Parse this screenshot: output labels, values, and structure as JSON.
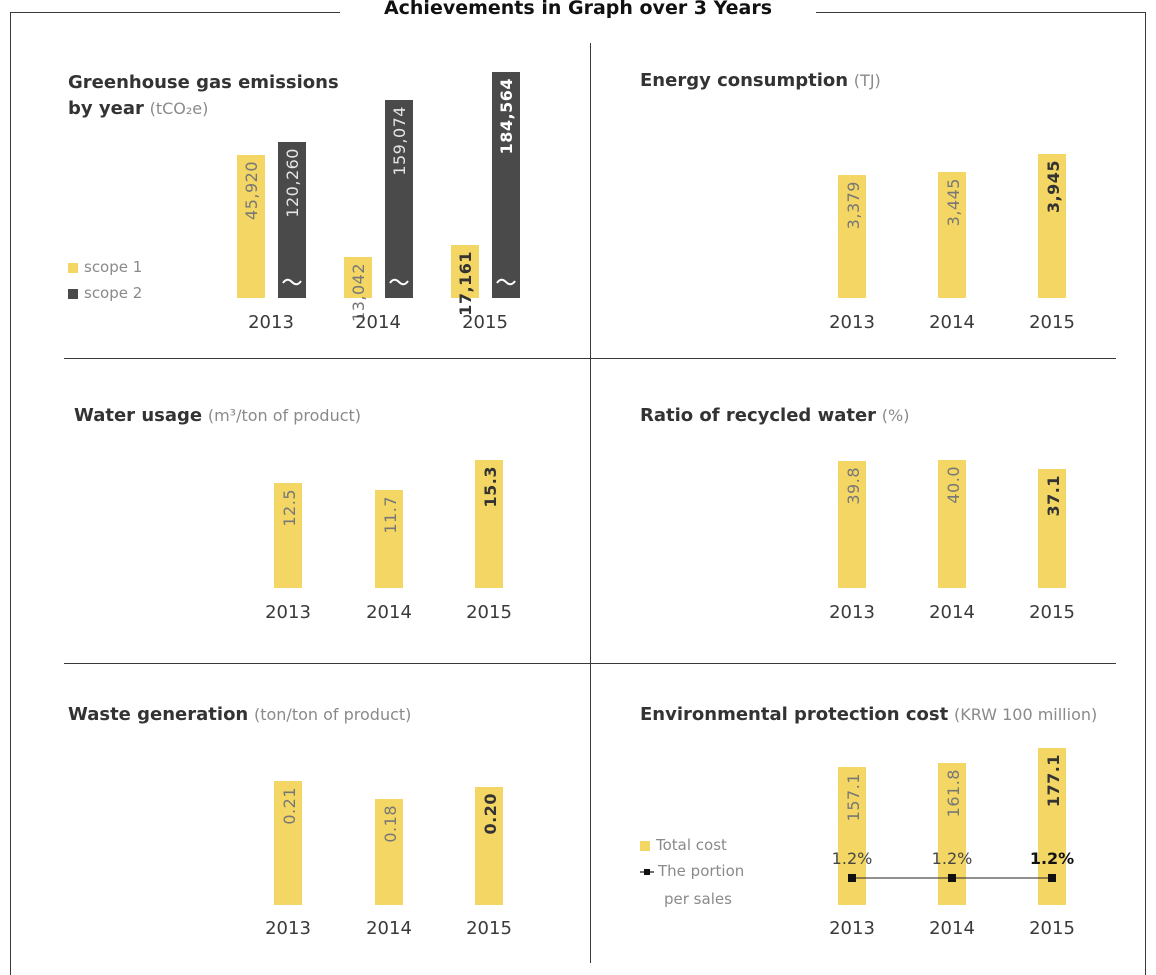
{
  "main_title": "Achievements in Graph over 3 Years",
  "legend": {
    "scope1": "scope 1",
    "scope2": "scope 2",
    "total_cost": "Total cost",
    "portion_line1": "The portion",
    "portion_line2": "per sales"
  },
  "panels": {
    "ghg": {
      "title_bold1": "Greenhouse gas emissions",
      "title_bold2": "by year",
      "unit": "(tCO₂e)"
    },
    "energy": {
      "title_bold": "Energy consumption",
      "unit": "(TJ)"
    },
    "water": {
      "title_bold": "Water usage",
      "unit": "(m³/ton of product)"
    },
    "recycled": {
      "title_bold": "Ratio of recycled water",
      "unit": "(%)"
    },
    "waste": {
      "title_bold": "Waste generation",
      "unit": "(ton/ton of product)"
    },
    "envcost": {
      "title_bold": "Environmental protection cost",
      "unit": "(KRW 100 million)"
    }
  },
  "colors": {
    "accent_yellow": "#f3d663",
    "dark_bar": "#4a4a4a"
  },
  "chart_data": [
    {
      "type": "bar",
      "title": "Greenhouse gas emissions by year (tCO₂e)",
      "categories": [
        "2013",
        "2014",
        "2015"
      ],
      "series": [
        {
          "name": "scope 1",
          "values": [
            45920,
            13042,
            17161
          ],
          "labels": [
            "45,920",
            "13,042",
            "17,161"
          ]
        },
        {
          "name": "scope 2",
          "values": [
            120260,
            159074,
            184564
          ],
          "labels": [
            "120,260",
            "159,074",
            "184,564"
          ]
        }
      ],
      "note": "scope 2 axis broken"
    },
    {
      "type": "bar",
      "title": "Energy consumption (TJ)",
      "categories": [
        "2013",
        "2014",
        "2015"
      ],
      "values": [
        3379,
        3445,
        3945
      ],
      "labels": [
        "3,379",
        "3,445",
        "3,945"
      ]
    },
    {
      "type": "bar",
      "title": "Water usage (m³/ton of product)",
      "categories": [
        "2013",
        "2014",
        "2015"
      ],
      "values": [
        12.5,
        11.7,
        15.3
      ],
      "labels": [
        "12.5",
        "11.7",
        "15.3"
      ]
    },
    {
      "type": "bar",
      "title": "Ratio of recycled water (%)",
      "categories": [
        "2013",
        "2014",
        "2015"
      ],
      "values": [
        39.8,
        40.0,
        37.1
      ],
      "labels": [
        "39.8",
        "40.0",
        "37.1"
      ]
    },
    {
      "type": "bar",
      "title": "Waste generation (ton/ton of product)",
      "categories": [
        "2013",
        "2014",
        "2015"
      ],
      "values": [
        0.21,
        0.18,
        0.2
      ],
      "labels": [
        "0.21",
        "0.18",
        "0.20"
      ]
    },
    {
      "type": "bar",
      "title": "Environmental protection cost (KRW 100 million)",
      "categories": [
        "2013",
        "2014",
        "2015"
      ],
      "series": [
        {
          "name": "Total cost",
          "values": [
            157.1,
            161.8,
            177.1
          ],
          "labels": [
            "157.1",
            "161.8",
            "177.1"
          ]
        },
        {
          "name": "The portion per sales",
          "values": [
            1.2,
            1.2,
            1.2
          ],
          "labels": [
            "1.2%",
            "1.2%",
            "1.2%"
          ],
          "type": "line"
        }
      ]
    }
  ]
}
